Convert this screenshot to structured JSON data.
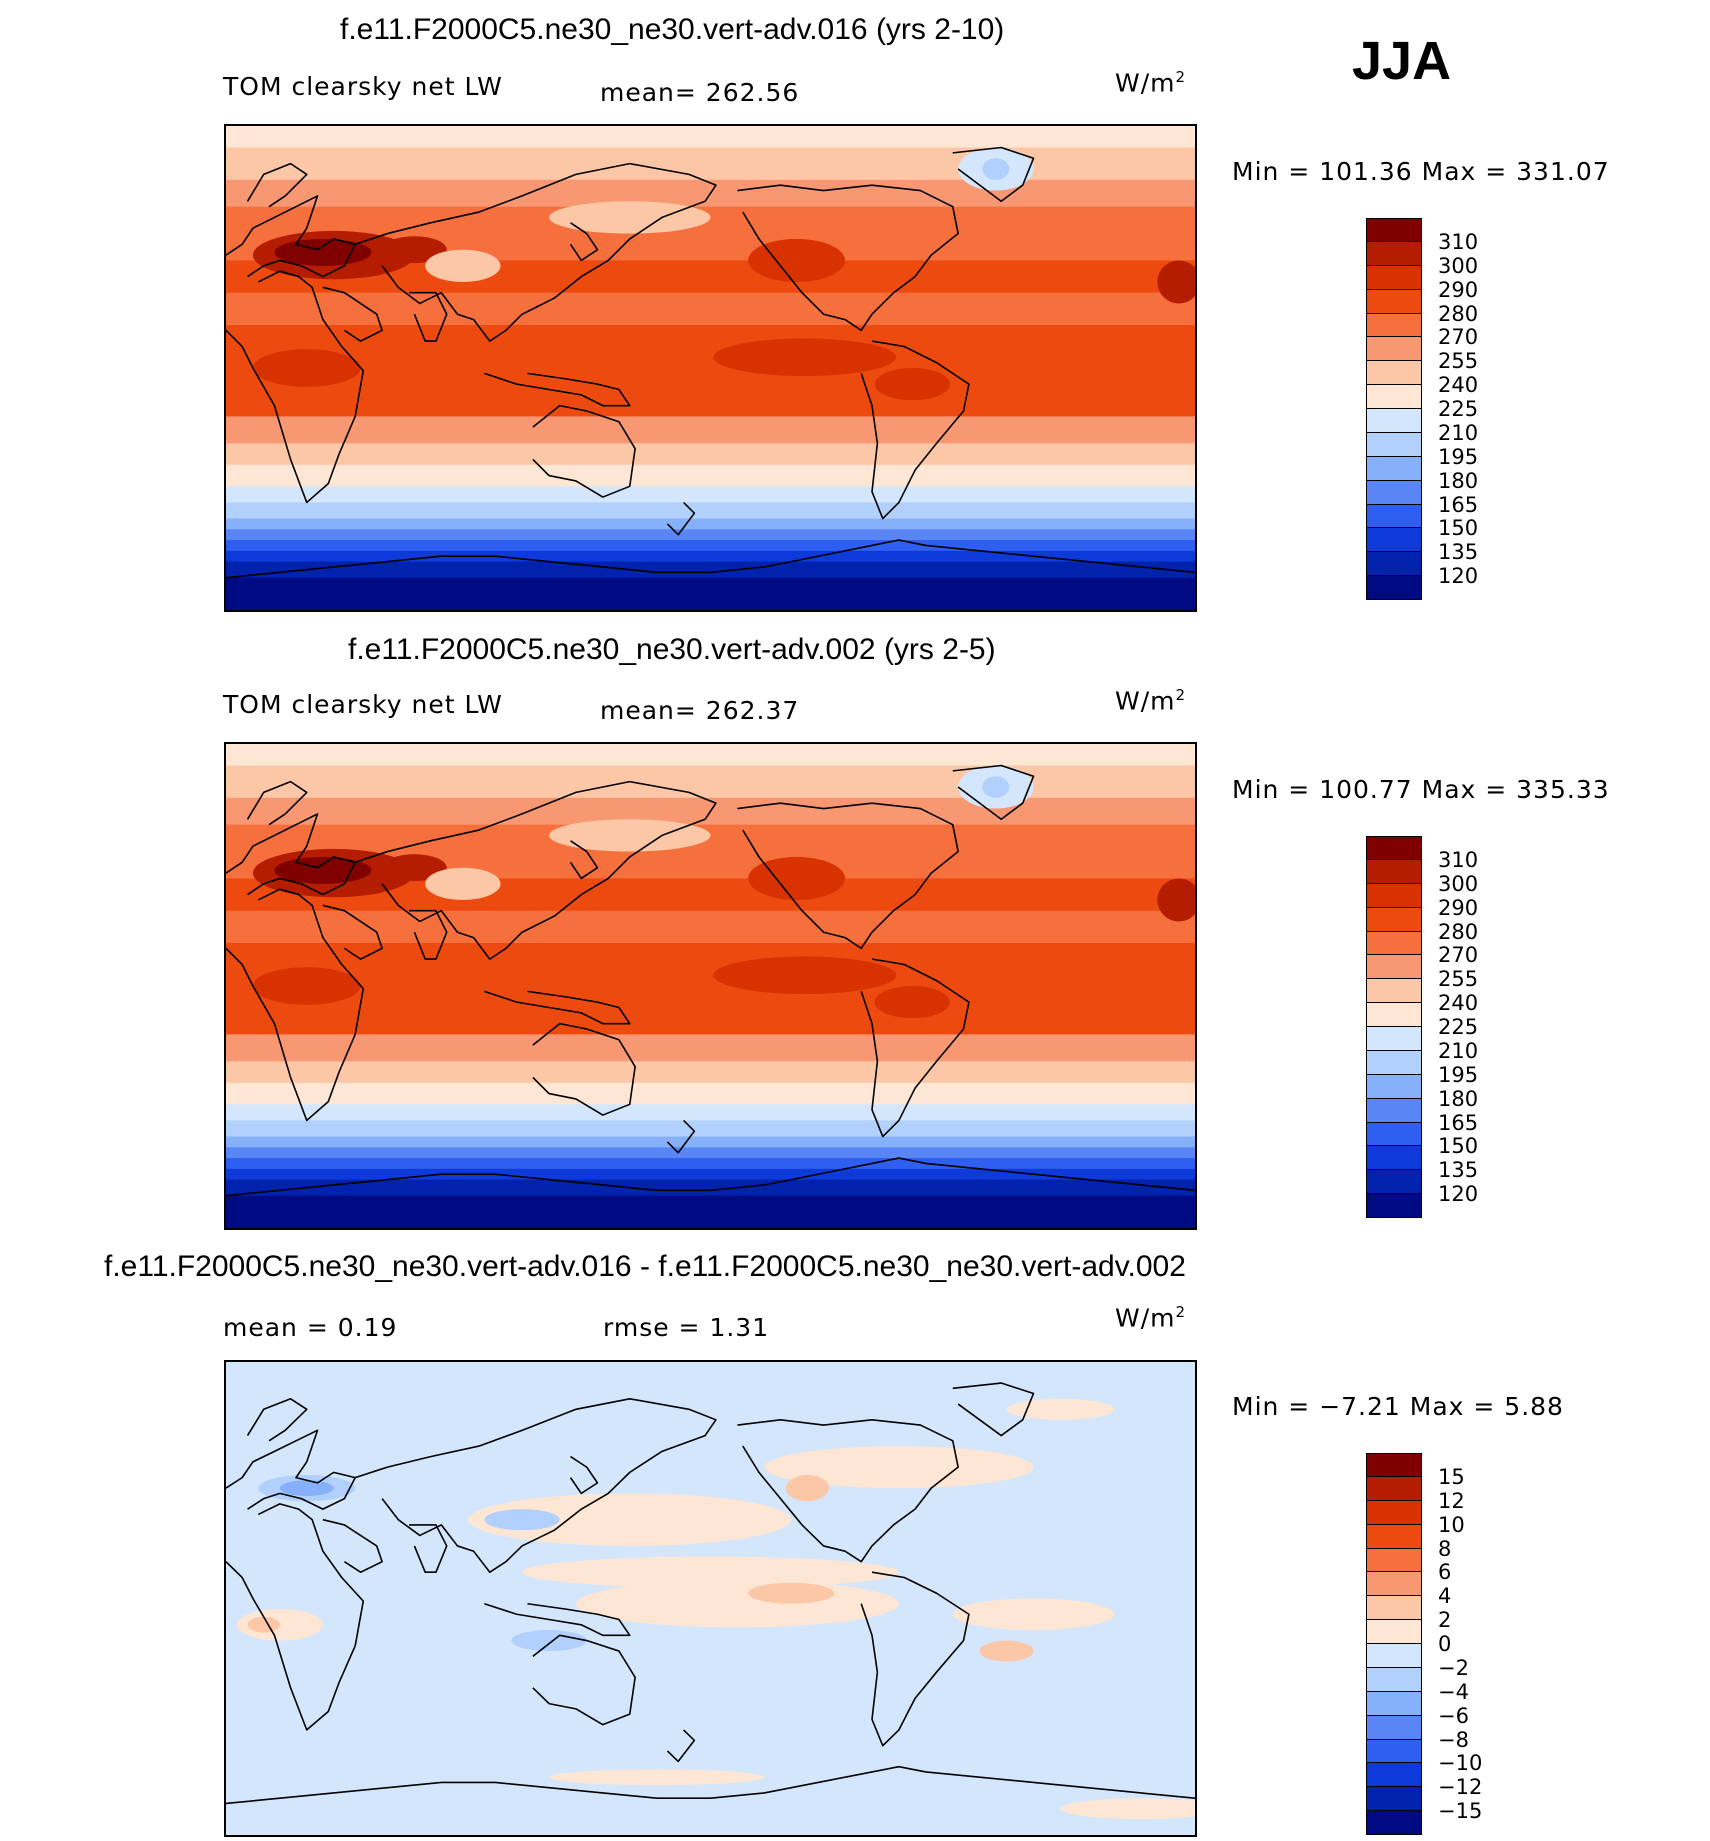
{
  "season": "JJA",
  "panels": [
    {
      "title": "f.e11.F2000C5.ne30_ne30.vert-adv.016 (yrs 2-10)",
      "variable": "TOM clearsky net LW",
      "stat1": "mean= 262.56",
      "stat2": "",
      "units": "W/m",
      "units_exp": "2",
      "minmax": "Min = 101.36  Max = 331.07",
      "kind": "abs"
    },
    {
      "title": "f.e11.F2000C5.ne30_ne30.vert-adv.002 (yrs 2-5)",
      "variable": "TOM clearsky net LW",
      "stat1": "mean= 262.37",
      "stat2": "",
      "units": "W/m",
      "units_exp": "2",
      "minmax": "Min = 100.77  Max = 335.33",
      "kind": "abs"
    },
    {
      "title": "f.e11.F2000C5.ne30_ne30.vert-adv.016 - f.e11.F2000C5.ne30_ne30.vert-adv.002",
      "variable": "",
      "stat1": "mean =    0.19",
      "stat2": "rmse =    1.31",
      "units": "W/m",
      "units_exp": "2",
      "minmax": "Min =  −7.21  Max =     5.88",
      "kind": "diff"
    }
  ],
  "colorbars": {
    "abs": {
      "labels": [
        "310",
        "300",
        "290",
        "280",
        "270",
        "255",
        "240",
        "225",
        "210",
        "195",
        "180",
        "165",
        "150",
        "135",
        "120"
      ],
      "colors": [
        "#800000",
        "#b51d00",
        "#d83200",
        "#ed4a10",
        "#f6703e",
        "#f89873",
        "#fcc7a6",
        "#fde6d3",
        "#d4e6fb",
        "#b1d0fb",
        "#86b0fa",
        "#5a86f5",
        "#2e5ff0",
        "#0d3ad9",
        "#0022ac",
        "#000b83"
      ]
    },
    "diff": {
      "labels": [
        "15",
        "12",
        "10",
        "8",
        "6",
        "4",
        "2",
        "0",
        "−2",
        "−4",
        "−6",
        "−8",
        "−10",
        "−12",
        "−15"
      ],
      "colors": [
        "#800000",
        "#b51d00",
        "#d83200",
        "#ed4a10",
        "#f6703e",
        "#f89873",
        "#fcc7a6",
        "#fde6d3",
        "#d4e6fb",
        "#b1d0fb",
        "#86b0fa",
        "#5a86f5",
        "#2e5ff0",
        "#0d3ad9",
        "#0022ac",
        "#000b83"
      ]
    }
  }
}
